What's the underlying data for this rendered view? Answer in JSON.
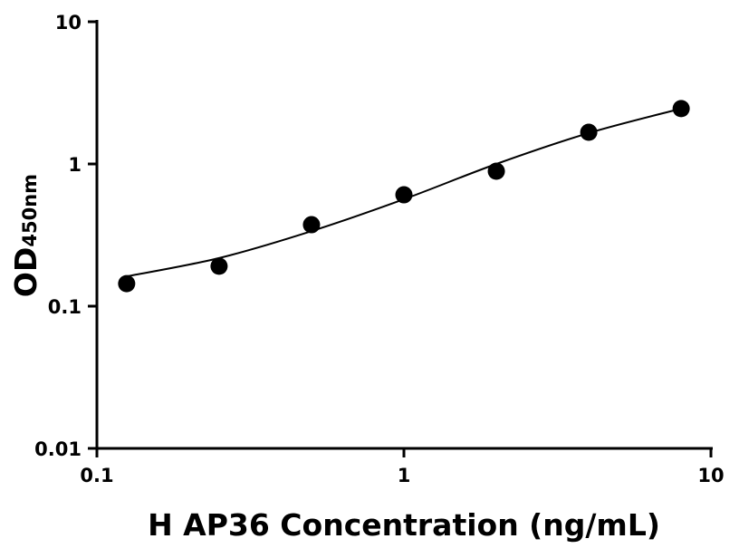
{
  "chart_data": {
    "type": "scatter",
    "title": "",
    "xlabel": "H AP36 Concentration (ng/mL)",
    "ylabel": "OD",
    "ylabel_subscript": "450nm",
    "xscale": "log",
    "yscale": "log",
    "xlim": [
      0.1,
      10
    ],
    "ylim": [
      0.01,
      10
    ],
    "x_ticks": [
      "0.1",
      "1",
      "10"
    ],
    "y_ticks": [
      "0.01",
      "0.1",
      "1",
      "10"
    ],
    "grid": false,
    "legend": "none",
    "marker_color": "#000000",
    "series": [
      {
        "x": [
          0.125,
          0.25,
          0.5,
          1,
          2,
          4,
          8
        ],
        "y": [
          0.144,
          0.191,
          0.374,
          0.607,
          0.889,
          1.67,
          2.45
        ]
      }
    ],
    "fit_curve": {
      "x": [
        0.125,
        0.25,
        0.5,
        1,
        2,
        4,
        8
      ],
      "y": [
        0.162,
        0.218,
        0.337,
        0.565,
        1.0,
        1.65,
        2.45
      ]
    }
  }
}
